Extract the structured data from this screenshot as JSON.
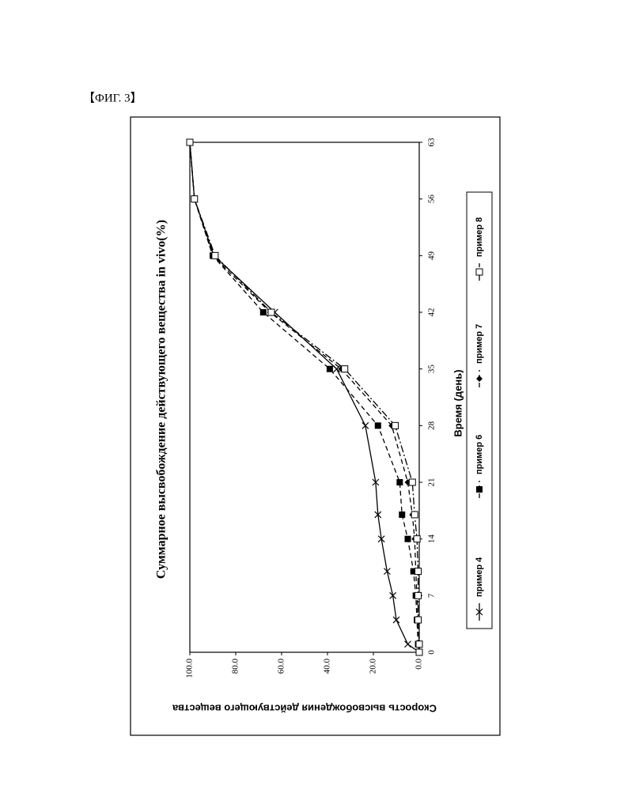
{
  "figure_label": "【ФИГ. 3】",
  "chart_data": {
    "type": "line",
    "title": "Суммарное высвобождение действующего вещества in vivo(%)",
    "x_label": "Время (день)",
    "y_label": "Скорость высвобождения действующего вещества",
    "x": [
      0,
      1,
      4,
      7,
      10,
      14,
      17,
      21,
      28,
      35,
      42,
      49,
      56,
      63
    ],
    "xlim": [
      0,
      63
    ],
    "xticks": [
      0,
      7,
      14,
      21,
      28,
      35,
      42,
      49,
      56,
      63
    ],
    "ylim": [
      0,
      100
    ],
    "yticks": [
      {
        "value": 0,
        "label": "0.0"
      },
      {
        "value": 20,
        "label": "20.0"
      },
      {
        "value": 40,
        "label": "40.0"
      },
      {
        "value": 60,
        "label": "60.0"
      },
      {
        "value": 80,
        "label": "80.0"
      },
      {
        "value": 100,
        "label": "100.0"
      }
    ],
    "grid": false,
    "legend": "bottom",
    "series": [
      {
        "name": "пример 4",
        "color": "#000000",
        "marker": "x",
        "line_style": "solid",
        "values": [
          0,
          5,
          10,
          11.5,
          14,
          16.5,
          18,
          19,
          23.5,
          36,
          63,
          89.5,
          98,
          100
        ]
      },
      {
        "name": "пример 6",
        "color": "#000000",
        "marker": "square",
        "line_style": "dashed",
        "values": [
          0,
          0.5,
          1,
          1.5,
          2.5,
          5,
          7.5,
          8.5,
          18,
          39,
          68,
          90,
          98,
          100
        ]
      },
      {
        "name": "пример 7",
        "color": "#000000",
        "marker": "diamond",
        "line_style": "dashed",
        "values": [
          0,
          0,
          0.5,
          1,
          1.5,
          2,
          3,
          5,
          12,
          34,
          65,
          90,
          98,
          100
        ]
      },
      {
        "name": "пример 8",
        "color": "#000000",
        "marker": "open-square",
        "line_style": "dashdot",
        "values": [
          0,
          0,
          0.5,
          0.5,
          0.5,
          1,
          2,
          3,
          10.5,
          32.5,
          64.5,
          89,
          98,
          100
        ]
      }
    ]
  }
}
